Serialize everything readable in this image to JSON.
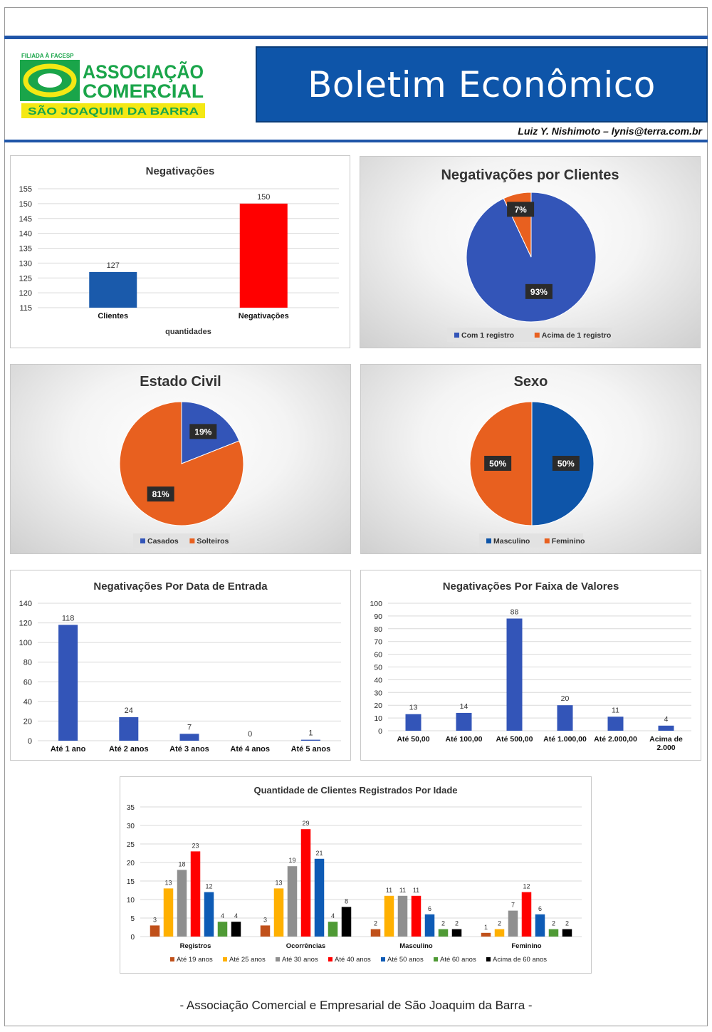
{
  "header": {
    "logo_small": "FILIADA À FACESP",
    "logo_line1": "ASSOCIAÇÃO",
    "logo_line2": "COMERCIAL",
    "logo_line3": "SÃO JOAQUIM DA BARRA",
    "title": "Boletim Econômico",
    "author": "Luiz Y. Nishimoto – lynis@terra.com.br"
  },
  "footer": "- Associação Comercial e Empresarial de São Joaquim da Barra -",
  "colors": {
    "brand_blue": "#0e55a9",
    "blue": "#3355b8",
    "red": "#ff0000",
    "orange": "#e8601f",
    "green_logo": "#1aa54a",
    "yellow_logo": "#f4e814"
  },
  "chart_data": [
    {
      "type": "bar",
      "title": "Negativações",
      "xlabel": "quantidades",
      "categories": [
        "Clientes",
        "Negativações"
      ],
      "values": [
        127,
        150
      ],
      "bar_colors": [
        "#1a5aab",
        "#ff0000"
      ],
      "ylim": [
        115,
        155
      ],
      "yticks": [
        115,
        120,
        125,
        130,
        135,
        140,
        145,
        150,
        155
      ],
      "grid": true
    },
    {
      "type": "pie",
      "title": "Negativações por Clientes",
      "labels": [
        "Com 1 registro",
        "Acima de 1 registro"
      ],
      "values": [
        93,
        7
      ],
      "value_labels": [
        "93%",
        "7%"
      ],
      "colors": [
        "#3355b8",
        "#e8601f"
      ],
      "legend": "bottom"
    },
    {
      "type": "pie",
      "title": "Estado Civil",
      "labels": [
        "Casados",
        "Solteiros"
      ],
      "values": [
        19,
        81
      ],
      "value_labels": [
        "19%",
        "81%"
      ],
      "colors": [
        "#3355b8",
        "#e8601f"
      ],
      "legend": "bottom"
    },
    {
      "type": "pie",
      "title": "Sexo",
      "labels": [
        "Masculino",
        "Feminino"
      ],
      "values": [
        50,
        50
      ],
      "value_labels": [
        "50%",
        "50%"
      ],
      "colors": [
        "#0e55a9",
        "#e8601f"
      ],
      "legend": "bottom"
    },
    {
      "type": "bar",
      "title": "Negativações Por Data de Entrada",
      "categories": [
        "Até 1 ano",
        "Até 2 anos",
        "Até 3 anos",
        "Até 4 anos",
        "Até 5 anos"
      ],
      "values": [
        118,
        24,
        7,
        0,
        1
      ],
      "bar_colors": [
        "#3355b8"
      ],
      "ylim": [
        0,
        140
      ],
      "yticks": [
        0,
        20,
        40,
        60,
        80,
        100,
        120,
        140
      ],
      "grid": true
    },
    {
      "type": "bar",
      "title": "Negativações Por Faixa de Valores",
      "categories": [
        "Até 50,00",
        "Até 100,00",
        "Até 500,00",
        "Até 1.000,00",
        "Até 2.000,00",
        "Acima de 2.000"
      ],
      "values": [
        13,
        14,
        88,
        20,
        11,
        4
      ],
      "bar_colors": [
        "#3355b8"
      ],
      "ylim": [
        0,
        100
      ],
      "yticks": [
        0,
        10,
        20,
        30,
        40,
        50,
        60,
        70,
        80,
        90,
        100
      ],
      "grid": true
    },
    {
      "type": "bar",
      "title": "Quantidade de Clientes Registrados Por Idade",
      "categories": [
        "Registros",
        "Ocorrências",
        "Masculino",
        "Feminino"
      ],
      "series": [
        {
          "name": "Até 19 anos",
          "color": "#c0501a",
          "values": [
            3,
            3,
            2,
            1
          ]
        },
        {
          "name": "Até 25 anos",
          "color": "#ffb000",
          "values": [
            13,
            13,
            11,
            2
          ]
        },
        {
          "name": "Até 30 anos",
          "color": "#8f8f8f",
          "values": [
            18,
            19,
            11,
            7
          ]
        },
        {
          "name": "Até 40 anos",
          "color": "#ff0000",
          "values": [
            23,
            29,
            11,
            12
          ]
        },
        {
          "name": "Até 50 anos",
          "color": "#0e5bb5",
          "values": [
            12,
            21,
            6,
            6
          ]
        },
        {
          "name": "Até 60 anos",
          "color": "#4f9a35",
          "values": [
            4,
            4,
            2,
            2
          ]
        },
        {
          "name": "Acima de 60 anos",
          "color": "#000000",
          "values": [
            4,
            8,
            2,
            2
          ]
        }
      ],
      "ylim": [
        0,
        35
      ],
      "yticks": [
        0,
        5,
        10,
        15,
        20,
        25,
        30,
        35
      ],
      "legend": "bottom",
      "grid": true
    }
  ]
}
